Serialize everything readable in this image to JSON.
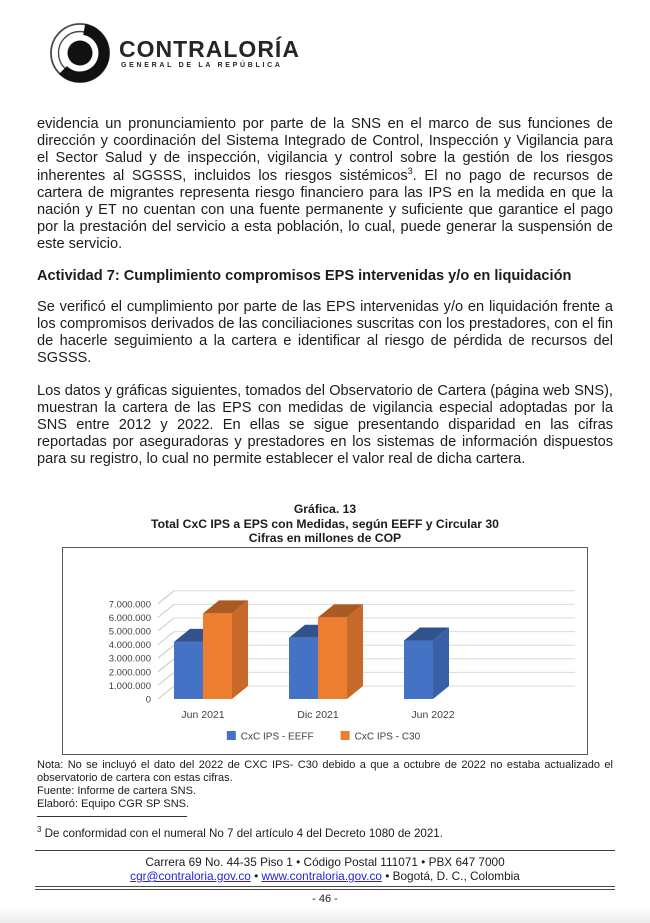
{
  "header": {
    "logo_title": "CONTRALORÍA",
    "logo_subtitle": "GENERAL DE LA REPÚBLICA"
  },
  "content": {
    "p1": {
      "part1": "evidencia un pronunciamiento por parte de la SNS en el marco de sus funciones de dirección y coordinación del Sistema Integrado de Control, Inspección y Vigilancia para el Sector Salud y de inspección, vigilancia y control sobre la gestión de los riesgos inherentes al SGSSS, incluidos los riesgos sistémicos",
      "sup": "3",
      "part2": ". El no pago de recursos de cartera de migrantes representa riesgo financiero para las IPS en la medida en que la nación y ET no cuentan con una fuente permanente y suficiente que garantice el pago por la prestación del servicio a esta población, lo cual, puede generar la suspensión de este servicio."
    },
    "heading": "Actividad 7: Cumplimiento compromisos EPS intervenidas y/o en liquidación",
    "p2": "Se verificó el cumplimiento por parte de las EPS intervenidas y/o en liquidación frente a los compromisos derivados de las conciliaciones suscritas con los prestadores, con el fin de hacerle seguimiento a la cartera e identificar al riesgo de pérdida de recursos del SGSSS.",
    "p3": "Los datos y gráficas siguientes, tomados del Observatorio de Cartera (página web SNS), muestran la cartera de las EPS con medidas de vigilancia especial adoptadas por la SNS entre 2012 y 2022. En ellas se sigue presentando disparidad en las cifras reportadas por aseguradoras y prestadores en los sistemas de información dispuestos para su registro, lo cual no permite establecer el valor real de dicha cartera."
  },
  "chart_data": {
    "type": "bar",
    "style": "3d-clustered-column",
    "title_lines": [
      "Gráfica. 13",
      "Total CxC IPS a EPS con Medidas, según EEFF y Circular 30",
      "Cifras en millones de COP"
    ],
    "categories": [
      "Jun 2021",
      "Dic 2021",
      "Jun 2022"
    ],
    "series": [
      {
        "name": "CxC IPS - EEFF",
        "color": "#4472C4",
        "values": [
          4200000,
          4500000,
          4300000
        ]
      },
      {
        "name": "CxC IPS - C30",
        "color": "#ED7D31",
        "values": [
          6300000,
          6000000,
          null
        ]
      }
    ],
    "ylim": [
      0,
      7000000
    ],
    "ytick_step": 1000000,
    "ytick_labels": [
      "0",
      "1.000.000",
      "2.000.000",
      "3.000.000",
      "4.000.000",
      "5.000.000",
      "6.000.000",
      "7.000.000"
    ],
    "grid": true,
    "legend_position": "bottom"
  },
  "chart_notes": {
    "nota": "Nota: No se incluyó el dato del 2022 de CXC IPS- C30 debido a que a octubre de 2022 no estaba actualizado el observatorio de cartera con estas cifras.",
    "fuente": "Fuente: Informe de cartera SNS.",
    "elaboro": "Elaboró: Equipo CGR SP SNS."
  },
  "footnote": {
    "sup": "3",
    "text": " De conformidad con el numeral No 7 del artículo 4 del Decreto 1080 de 2021."
  },
  "footer": {
    "address_line": "Carrera 69 No. 44-35 Piso 1 • Código Postal 111071 • PBX 647 7000",
    "email": "cgr@contraloria.gov.co",
    "separator": "•",
    "web": "www.contraloria.gov.co",
    "city": "Bogotá, D. C., Colombia",
    "page_number": "- 46 -"
  }
}
